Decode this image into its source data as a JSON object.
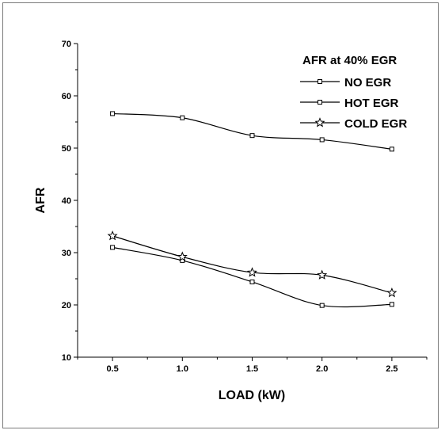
{
  "chart_data": {
    "type": "line",
    "title": "",
    "xlabel": "LOAD (kW)",
    "ylabel": "AFR",
    "xlim": [
      0.25,
      2.75
    ],
    "ylim": [
      10,
      70
    ],
    "x_ticks": [
      0.5,
      1.0,
      1.5,
      2.0,
      2.5
    ],
    "x_tick_labels": [
      "0.5",
      "1.0",
      "1.5",
      "2.0",
      "2.5"
    ],
    "y_ticks": [
      10,
      20,
      30,
      40,
      50,
      60,
      70
    ],
    "y_tick_labels": [
      "10",
      "20",
      "30",
      "40",
      "50",
      "60",
      "70"
    ],
    "grid": false,
    "legend": {
      "title": "AFR at 40% EGR",
      "placement": "top-right"
    },
    "x": [
      0.5,
      1.0,
      1.5,
      2.0,
      2.5
    ],
    "series": [
      {
        "name": "NO EGR",
        "marker": "square",
        "values": [
          56.6,
          55.8,
          52.4,
          51.6,
          49.8
        ]
      },
      {
        "name": "HOT EGR",
        "marker": "square",
        "values": [
          31.0,
          28.5,
          24.4,
          19.9,
          20.1
        ]
      },
      {
        "name": "COLD EGR",
        "marker": "star",
        "values": [
          33.2,
          29.2,
          26.2,
          25.7,
          22.3
        ]
      }
    ],
    "colors": {
      "line": "#000000",
      "marker_fill": "#ffffff"
    }
  }
}
